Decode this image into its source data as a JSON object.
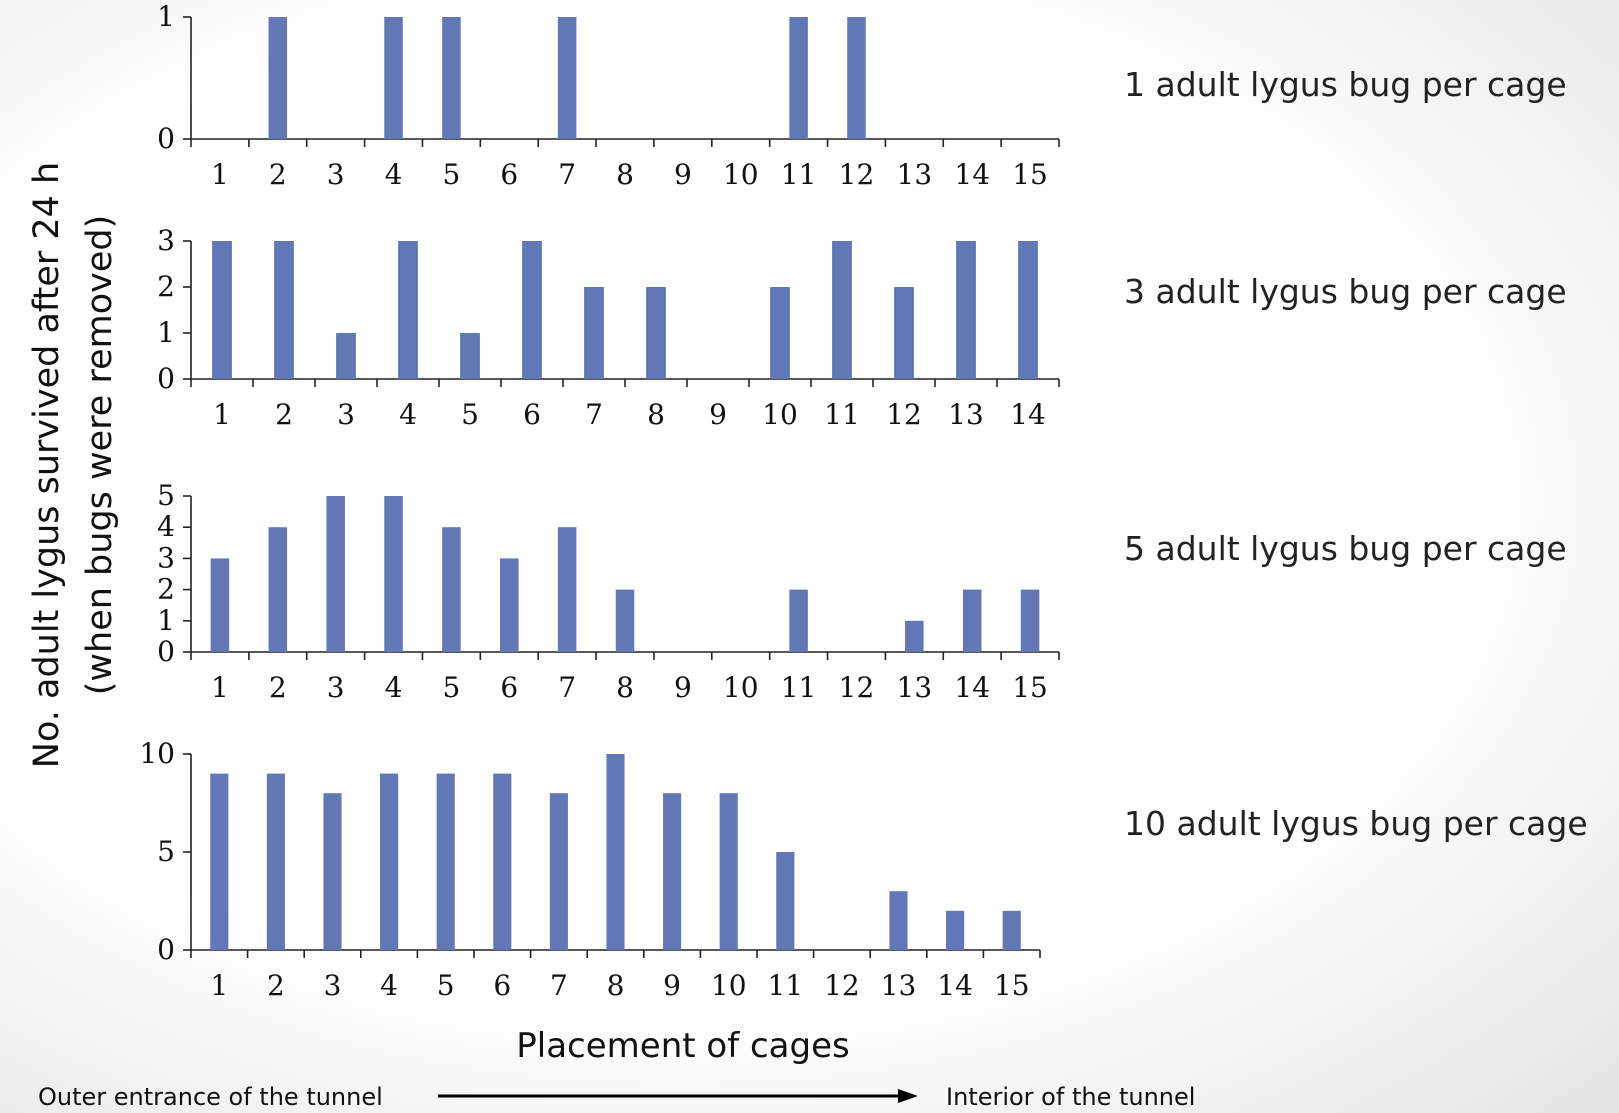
{
  "y_axis_title_line1": "No. adult lygus survived after 24 h",
  "y_axis_title_line2": "(when bugs were removed)",
  "x_axis_title": "Placement of cages",
  "arrow_left_label": "Outer entrance of the tunnel",
  "arrow_right_label": "Interior of the tunnel",
  "colors": {
    "bar": "#6277b6"
  },
  "chart_data": [
    {
      "type": "bar",
      "label": "1 adult lygus bug per cage",
      "categories": [
        "1",
        "2",
        "3",
        "4",
        "5",
        "6",
        "7",
        "8",
        "9",
        "10",
        "11",
        "12",
        "13",
        "14",
        "15"
      ],
      "values": [
        0,
        1,
        0,
        1,
        1,
        0,
        1,
        0,
        0,
        0,
        1,
        1,
        0,
        0,
        0
      ],
      "ylim": [
        0,
        1
      ],
      "yticks": [
        0,
        1
      ]
    },
    {
      "type": "bar",
      "label": "3 adult lygus bug per cage",
      "categories": [
        "1",
        "2",
        "3",
        "4",
        "5",
        "6",
        "7",
        "8",
        "9",
        "10",
        "11",
        "12",
        "13",
        "14"
      ],
      "values": [
        3,
        3,
        1,
        3,
        1,
        3,
        2,
        2,
        0,
        2,
        3,
        2,
        3,
        3
      ],
      "ylim": [
        0,
        3
      ],
      "yticks": [
        0,
        1,
        2,
        3
      ]
    },
    {
      "type": "bar",
      "label": "5 adult lygus bug per cage",
      "categories": [
        "1",
        "2",
        "3",
        "4",
        "5",
        "6",
        "7",
        "8",
        "9",
        "10",
        "11",
        "12",
        "13",
        "14",
        "15"
      ],
      "values": [
        3,
        4,
        5,
        5,
        4,
        3,
        4,
        2,
        0,
        0,
        2,
        0,
        1,
        2,
        2
      ],
      "ylim": [
        0,
        5
      ],
      "yticks": [
        0,
        1,
        2,
        3,
        4,
        5
      ]
    },
    {
      "type": "bar",
      "label": "10 adult lygus bug per cage",
      "categories": [
        "1",
        "2",
        "3",
        "4",
        "5",
        "6",
        "7",
        "8",
        "9",
        "10",
        "11",
        "12",
        "13",
        "14",
        "15"
      ],
      "values": [
        9,
        9,
        8,
        9,
        9,
        9,
        8,
        10,
        8,
        8,
        5,
        0,
        3,
        2,
        2
      ],
      "ylim": [
        0,
        10
      ],
      "yticks": [
        0,
        5,
        10
      ]
    }
  ]
}
